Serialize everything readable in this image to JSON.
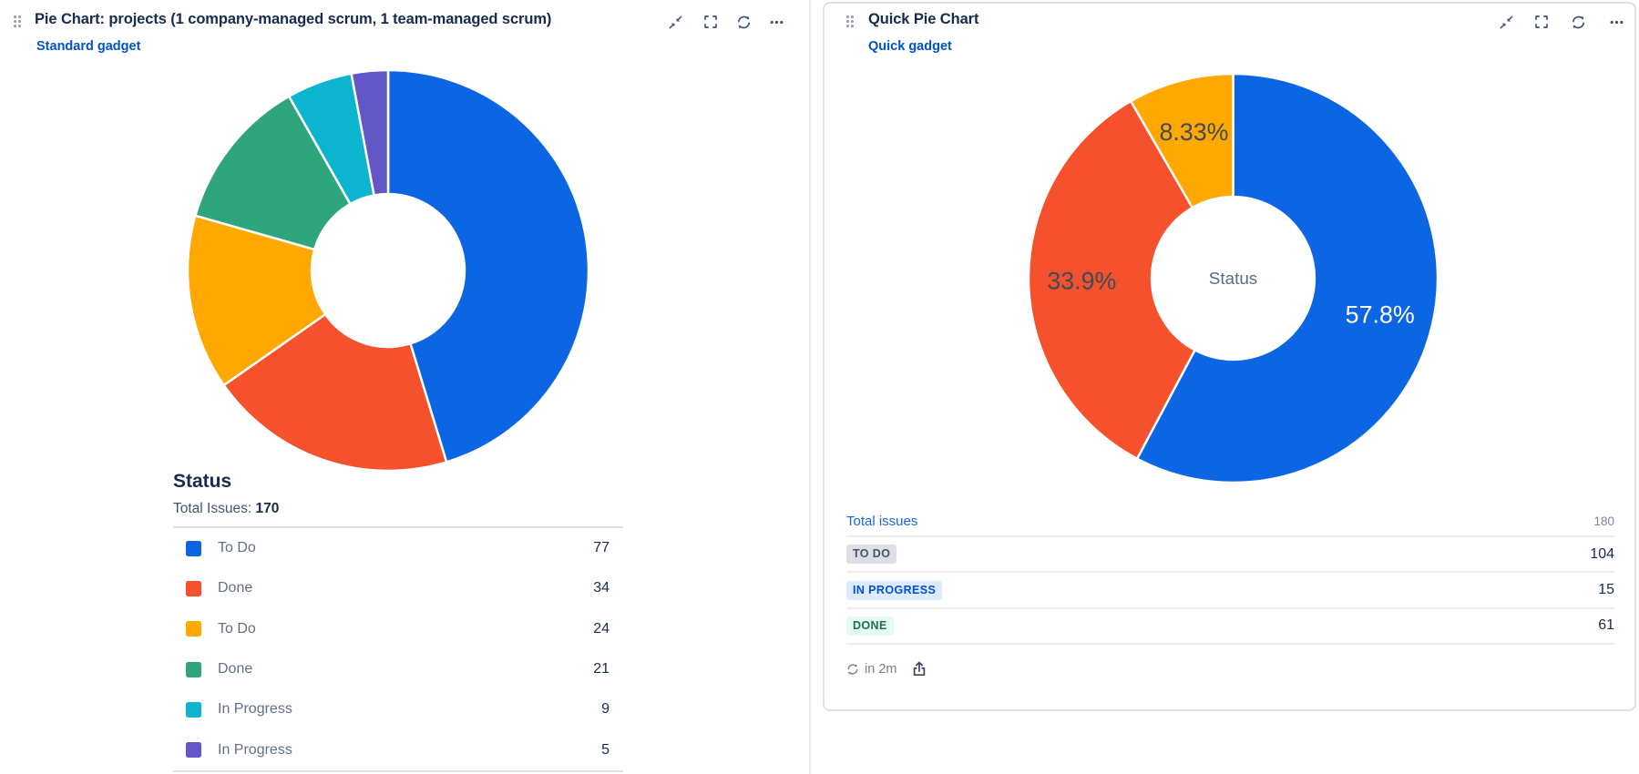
{
  "left_gadget": {
    "title": "Pie Chart: projects (1 company-managed scrum, 1 team-managed scrum)",
    "subtitle_link": "Standard gadget",
    "toolbar": [
      "minimize",
      "expand",
      "refresh",
      "more"
    ],
    "summary": {
      "heading": "Status",
      "total_label": "Total Issues:",
      "total_value": "170"
    }
  },
  "right_gadget": {
    "title": "Quick Pie Chart",
    "subtitle_link": "Quick gadget",
    "toolbar": [
      "minimize",
      "expand",
      "refresh",
      "more"
    ],
    "table": {
      "header": {
        "label": "Total issues",
        "value": "180"
      },
      "rows": [
        {
          "badge": "TO DO",
          "style": "todo",
          "value": "104"
        },
        {
          "badge": "IN PROGRESS",
          "style": "inprogress",
          "value": "15"
        },
        {
          "badge": "DONE",
          "style": "done",
          "value": "61"
        }
      ],
      "badge_colors": {
        "todo": {
          "bg": "#DCDFE4",
          "text": "#44546F"
        },
        "inprogress": {
          "bg": "#DEEBFF",
          "text": "#0052CC"
        },
        "done": {
          "bg": "#E3FCEF",
          "text": "#216E4E"
        }
      }
    },
    "footer": {
      "refresh_in": "in 2m"
    }
  },
  "chart_data": [
    {
      "type": "pie",
      "title": "Status",
      "total": 170,
      "labels": [
        "To Do",
        "Done",
        "To Do",
        "Done",
        "In Progress",
        "In Progress"
      ],
      "values": [
        77,
        34,
        24,
        21,
        9,
        5
      ],
      "colors": [
        "#0C66E4",
        "#F4512C",
        "#FFA800",
        "#2EA57C",
        "#0CB4CE",
        "#6356C6"
      ],
      "legend_position": "bottom",
      "donut": true
    },
    {
      "type": "pie",
      "title": "Quick Pie Chart — Status",
      "total": 180,
      "labels": [
        "To Do",
        "Done",
        "In Progress"
      ],
      "values": [
        104,
        61,
        15
      ],
      "percent_labels": [
        "57.8%",
        "33.9%",
        "8.33%"
      ],
      "label_colors": [
        "#FFFFFF",
        "#404A5C",
        "#404A5C"
      ],
      "colors": [
        "#0C66E4",
        "#F4512C",
        "#FFA800"
      ],
      "center_label": "Status",
      "donut": true
    }
  ],
  "colors": {
    "link": "#0052CC",
    "table_link": "#1D63DC",
    "title_text": "#172B4D",
    "icon": "#44546F"
  }
}
